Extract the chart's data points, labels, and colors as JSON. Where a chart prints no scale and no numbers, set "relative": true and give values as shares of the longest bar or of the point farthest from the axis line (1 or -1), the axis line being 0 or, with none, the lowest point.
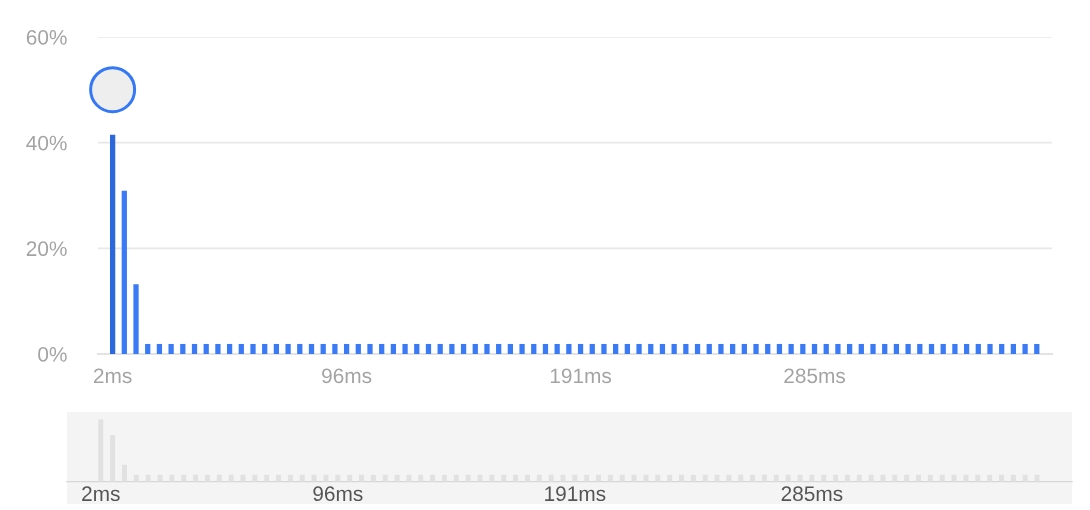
{
  "chart_data": [
    {
      "type": "bar",
      "categories": [
        "2ms",
        null,
        null,
        null,
        null,
        null,
        null,
        null,
        null,
        null,
        null,
        null,
        null,
        null,
        null,
        null,
        null,
        null,
        null,
        null,
        "96ms",
        null,
        null,
        null,
        null,
        null,
        null,
        null,
        null,
        null,
        null,
        null,
        null,
        null,
        null,
        null,
        null,
        null,
        null,
        null,
        "191ms",
        null,
        null,
        null,
        null,
        null,
        null,
        null,
        null,
        null,
        null,
        null,
        null,
        null,
        null,
        null,
        null,
        null,
        null,
        null,
        "285ms",
        null,
        null,
        null,
        null,
        null,
        null,
        null,
        null,
        null,
        null,
        null,
        null,
        null,
        null,
        null,
        null,
        null,
        null,
        null
      ],
      "values": [
        41.5,
        30.9,
        13.2,
        1.9,
        1.9,
        1.9,
        1.9,
        1.9,
        1.9,
        1.9,
        1.9,
        1.9,
        1.9,
        1.9,
        1.9,
        1.9,
        1.9,
        1.9,
        1.9,
        1.9,
        1.9,
        1.9,
        1.9,
        1.9,
        1.9,
        1.9,
        1.9,
        1.9,
        1.9,
        1.9,
        1.9,
        1.9,
        1.9,
        1.9,
        1.9,
        1.9,
        1.9,
        1.9,
        1.9,
        1.9,
        1.9,
        1.9,
        1.9,
        1.9,
        1.9,
        1.9,
        1.9,
        1.9,
        1.9,
        1.9,
        1.9,
        1.9,
        1.9,
        1.9,
        1.9,
        1.9,
        1.9,
        1.9,
        1.9,
        1.9,
        1.9,
        1.9,
        1.9,
        1.9,
        1.9,
        1.9,
        1.9,
        1.9,
        1.9,
        1.9,
        1.9,
        1.9,
        1.9,
        1.9,
        1.9,
        1.9,
        1.9,
        1.9,
        1.9,
        1.9
      ],
      "colors": [
        "#2c68dc",
        "#3a7bf5",
        "#3a7bf5",
        "#3a7bf5",
        "#3a7bf5",
        "#3a7bf5",
        "#3a7bf5",
        "#3a7bf5",
        "#3a7bf5",
        "#3a7bf5",
        "#3a7bf5",
        "#3a7bf5",
        "#3a7bf5",
        "#3a7bf5",
        "#3a7bf5",
        "#3a7bf5",
        "#3a7bf5",
        "#3a7bf5",
        "#3a7bf5",
        "#3a7bf5",
        "#3a7bf5",
        "#3a7bf5",
        "#3a7bf5",
        "#3a7bf5",
        "#3a7bf5",
        "#3a7bf5",
        "#3a7bf5",
        "#3a7bf5",
        "#3a7bf5",
        "#3a7bf5",
        "#3a7bf5",
        "#3a7bf5",
        "#3a7bf5",
        "#3a7bf5",
        "#3a7bf5",
        "#3a7bf5",
        "#3a7bf5",
        "#3a7bf5",
        "#3a7bf5",
        "#3a7bf5",
        "#3a7bf5",
        "#3a7bf5",
        "#3a7bf5",
        "#3a7bf5",
        "#3a7bf5",
        "#3a7bf5",
        "#3a7bf5",
        "#3a7bf5",
        "#3a7bf5",
        "#3a7bf5",
        "#3a7bf5",
        "#3a7bf5",
        "#3a7bf5",
        "#3a7bf5",
        "#3a7bf5",
        "#3a7bf5",
        "#3a7bf5",
        "#3a7bf5",
        "#3a7bf5",
        "#3a7bf5",
        "#3a7bf5",
        "#3a7bf5",
        "#3a7bf5",
        "#3a7bf5",
        "#3a7bf5",
        "#3a7bf5",
        "#3a7bf5",
        "#3a7bf5",
        "#3a7bf5",
        "#3a7bf5",
        "#3a7bf5",
        "#3a7bf5",
        "#3a7bf5",
        "#3a7bf5",
        "#3a7bf5",
        "#3a7bf5",
        "#3a7bf5",
        "#3a7bf5",
        "#3a7bf5",
        "#3a7bf5"
      ],
      "ylim": [
        0,
        60
      ],
      "yticks": [
        {
          "value": 0,
          "label": "0%"
        },
        {
          "value": 20,
          "label": "20%"
        },
        {
          "value": 40,
          "label": "40%"
        },
        {
          "value": 60,
          "label": "60%"
        }
      ],
      "grid": "y"
    },
    {
      "type": "bar",
      "categories": [
        "2ms",
        null,
        null,
        null,
        null,
        null,
        null,
        null,
        null,
        null,
        null,
        null,
        null,
        null,
        null,
        null,
        null,
        null,
        null,
        null,
        "96ms",
        null,
        null,
        null,
        null,
        null,
        null,
        null,
        null,
        null,
        null,
        null,
        null,
        null,
        null,
        null,
        null,
        null,
        null,
        null,
        "191ms",
        null,
        null,
        null,
        null,
        null,
        null,
        null,
        null,
        null,
        null,
        null,
        null,
        null,
        null,
        null,
        null,
        null,
        null,
        null,
        "285ms",
        null,
        null,
        null,
        null,
        null,
        null,
        null,
        null,
        null,
        null,
        null,
        null,
        null,
        null,
        null,
        null,
        null,
        null,
        null
      ],
      "values": [
        1,
        0.75,
        0.27,
        0.11,
        0.11,
        0.11,
        0.11,
        0.11,
        0.11,
        0.11,
        0.11,
        0.11,
        0.11,
        0.11,
        0.11,
        0.11,
        0.11,
        0.11,
        0.11,
        0.11,
        0.11,
        0.11,
        0.11,
        0.11,
        0.11,
        0.11,
        0.11,
        0.11,
        0.11,
        0.11,
        0.11,
        0.11,
        0.11,
        0.11,
        0.11,
        0.11,
        0.11,
        0.11,
        0.11,
        0.11,
        0.11,
        0.11,
        0.11,
        0.11,
        0.11,
        0.11,
        0.11,
        0.11,
        0.11,
        0.11,
        0.11,
        0.11,
        0.11,
        0.11,
        0.11,
        0.11,
        0.11,
        0.11,
        0.11,
        0.11,
        0.11,
        0.11,
        0.11,
        0.11,
        0.11,
        0.11,
        0.11,
        0.11,
        0.11,
        0.11,
        0.11,
        0.11,
        0.11,
        0.11,
        0.11,
        0.11,
        0.11,
        0.11,
        0.11,
        0.11
      ],
      "color": "#e1e1e1",
      "relative": true
    }
  ]
}
